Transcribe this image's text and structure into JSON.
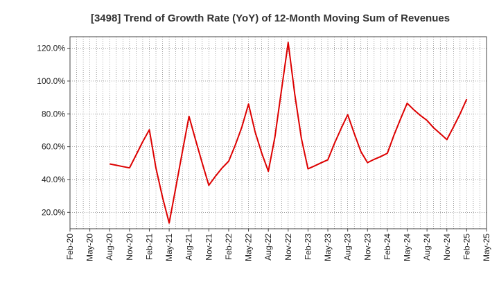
{
  "chart_data": {
    "type": "line",
    "title": "[3498]  Trend of Growth Rate (YoY) of 12-Month Moving Sum of Revenues",
    "xlabel": "",
    "ylabel": "",
    "x_tick_labels": [
      "Feb-20",
      "May-20",
      "Aug-20",
      "Nov-20",
      "Feb-21",
      "May-21",
      "Aug-21",
      "Nov-21",
      "Feb-22",
      "May-22",
      "Aug-22",
      "Nov-22",
      "Feb-23",
      "May-23",
      "Aug-23",
      "Nov-23",
      "Feb-24",
      "May-24",
      "Aug-24",
      "Nov-24",
      "Feb-25",
      "May-25"
    ],
    "y_ticks": [
      20,
      40,
      60,
      80,
      100,
      120
    ],
    "y_tick_labels": [
      "20.0%",
      "40.0%",
      "60.0%",
      "80.0%",
      "100.0%",
      "120.0%"
    ],
    "ylim": [
      10,
      127
    ],
    "grid": true,
    "line_color": "#dd0000",
    "series": [
      {
        "x": [
          "Aug-20",
          "Sep-20",
          "Oct-20",
          "Nov-20",
          "Dec-20",
          "Jan-21",
          "Feb-21",
          "Mar-21",
          "Apr-21",
          "May-21",
          "Jun-21",
          "Jul-21",
          "Aug-21",
          "Sep-21",
          "Oct-21",
          "Nov-21",
          "Dec-21",
          "Jan-22",
          "Feb-22",
          "Mar-22",
          "Apr-22",
          "May-22",
          "Jun-22",
          "Jul-22",
          "Aug-22",
          "Sep-22",
          "Oct-22",
          "Nov-22",
          "Dec-22",
          "Jan-23",
          "Feb-23",
          "Mar-23",
          "Apr-23",
          "May-23",
          "Jun-23",
          "Jul-23",
          "Aug-23",
          "Sep-23",
          "Oct-23",
          "Nov-23",
          "Dec-23",
          "Jan-24",
          "Feb-24",
          "Mar-24",
          "Apr-24",
          "May-24",
          "Jun-24",
          "Jul-24",
          "Aug-24",
          "Sep-24",
          "Oct-24",
          "Nov-24",
          "Dec-24",
          "Jan-25",
          "Feb-25"
        ],
        "values": [
          49.5,
          48.7,
          47.9,
          47.1,
          55.0,
          63.0,
          70.3,
          47.0,
          29.0,
          13.5,
          35.0,
          57.0,
          78.5,
          64.0,
          50.0,
          36.5,
          42.0,
          47.0,
          51.2,
          61.0,
          72.0,
          86.0,
          69.0,
          56.0,
          45.0,
          66.0,
          95.0,
          123.5,
          92.0,
          65.0,
          46.5,
          48.3,
          50.2,
          52.0,
          62.0,
          71.0,
          79.5,
          68.0,
          57.0,
          50.3,
          52.3,
          54.0,
          56.0,
          67.0,
          77.0,
          86.5,
          82.5,
          79.0,
          76.0,
          71.5,
          68.0,
          64.3,
          72.0,
          80.0,
          89.0
        ]
      }
    ]
  }
}
